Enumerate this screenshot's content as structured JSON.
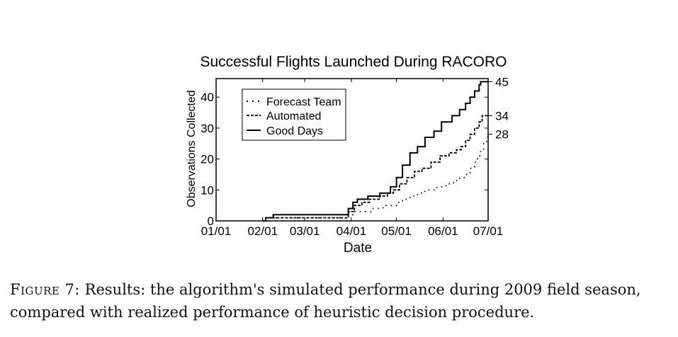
{
  "chart_data": {
    "type": "line",
    "title": "Successful Flights Launched During RACORO",
    "xlabel": "Date",
    "ylabel": "Observations Collected",
    "x_ticks": [
      "01/01",
      "02/01",
      "03/01",
      "04/01",
      "05/01",
      "06/01",
      "07/01"
    ],
    "x_tick_dates": [
      "2009-01-01",
      "2009-02-01",
      "2009-03-01",
      "2009-04-01",
      "2009-05-01",
      "2009-06-01",
      "2009-07-01"
    ],
    "xlim": [
      "2009-01-01",
      "2009-07-01"
    ],
    "y_ticks": [
      0,
      10,
      20,
      30,
      40
    ],
    "ylim": [
      0,
      46
    ],
    "grid": false,
    "legend_position": "top-left",
    "series": [
      {
        "name": "Forecast Team",
        "style": "dotted",
        "end_label": "28",
        "points": [
          [
            "2009-02-01",
            0
          ],
          [
            "2009-02-05",
            1
          ],
          [
            "2009-03-25",
            1
          ],
          [
            "2009-03-28",
            2
          ],
          [
            "2009-04-02",
            3
          ],
          [
            "2009-04-10",
            3
          ],
          [
            "2009-04-14",
            4
          ],
          [
            "2009-04-18",
            4
          ],
          [
            "2009-04-22",
            5
          ],
          [
            "2009-04-28",
            5
          ],
          [
            "2009-05-01",
            6
          ],
          [
            "2009-05-05",
            7
          ],
          [
            "2009-05-10",
            8
          ],
          [
            "2009-05-15",
            9
          ],
          [
            "2009-05-20",
            10
          ],
          [
            "2009-05-28",
            11
          ],
          [
            "2009-06-03",
            12
          ],
          [
            "2009-06-08",
            13
          ],
          [
            "2009-06-12",
            14
          ],
          [
            "2009-06-16",
            15
          ],
          [
            "2009-06-19",
            17
          ],
          [
            "2009-06-22",
            19
          ],
          [
            "2009-06-24",
            21
          ],
          [
            "2009-06-26",
            23
          ],
          [
            "2009-06-28",
            25
          ],
          [
            "2009-06-30",
            27
          ],
          [
            "2009-07-01",
            28
          ]
        ]
      },
      {
        "name": "Automated",
        "style": "dashed",
        "end_label": "34",
        "points": [
          [
            "2009-02-01",
            0
          ],
          [
            "2009-02-03",
            1
          ],
          [
            "2009-03-28",
            1
          ],
          [
            "2009-03-30",
            3
          ],
          [
            "2009-04-03",
            5
          ],
          [
            "2009-04-08",
            6
          ],
          [
            "2009-04-13",
            7
          ],
          [
            "2009-04-20",
            8
          ],
          [
            "2009-04-25",
            9
          ],
          [
            "2009-04-29",
            10
          ],
          [
            "2009-05-03",
            12
          ],
          [
            "2009-05-08",
            14
          ],
          [
            "2009-05-13",
            16
          ],
          [
            "2009-05-18",
            17
          ],
          [
            "2009-05-24",
            19
          ],
          [
            "2009-05-30",
            21
          ],
          [
            "2009-06-05",
            22
          ],
          [
            "2009-06-10",
            23
          ],
          [
            "2009-06-13",
            24
          ],
          [
            "2009-06-16",
            26
          ],
          [
            "2009-06-19",
            28
          ],
          [
            "2009-06-22",
            30
          ],
          [
            "2009-06-25",
            32
          ],
          [
            "2009-06-27",
            34
          ],
          [
            "2009-07-01",
            34
          ]
        ]
      },
      {
        "name": "Good Days",
        "style": "solid",
        "end_label": "45",
        "points": [
          [
            "2009-02-01",
            0
          ],
          [
            "2009-02-03",
            1
          ],
          [
            "2009-02-08",
            2
          ],
          [
            "2009-03-28",
            2
          ],
          [
            "2009-03-30",
            4
          ],
          [
            "2009-04-02",
            6
          ],
          [
            "2009-04-05",
            7
          ],
          [
            "2009-04-12",
            8
          ],
          [
            "2009-04-20",
            9
          ],
          [
            "2009-04-27",
            11
          ],
          [
            "2009-05-01",
            14
          ],
          [
            "2009-05-05",
            18
          ],
          [
            "2009-05-10",
            22
          ],
          [
            "2009-05-15",
            24
          ],
          [
            "2009-05-20",
            27
          ],
          [
            "2009-05-26",
            29
          ],
          [
            "2009-05-31",
            32
          ],
          [
            "2009-06-07",
            34
          ],
          [
            "2009-06-12",
            36
          ],
          [
            "2009-06-16",
            38
          ],
          [
            "2009-06-19",
            40
          ],
          [
            "2009-06-22",
            42
          ],
          [
            "2009-06-25",
            44
          ],
          [
            "2009-06-26",
            45
          ],
          [
            "2009-07-01",
            45
          ]
        ]
      }
    ]
  },
  "caption": {
    "figure_label": "Figure 7:",
    "text": " Results: the algorithm's simulated performance during 2009 field season, compared with realized performance of heuristic decision procedure."
  }
}
